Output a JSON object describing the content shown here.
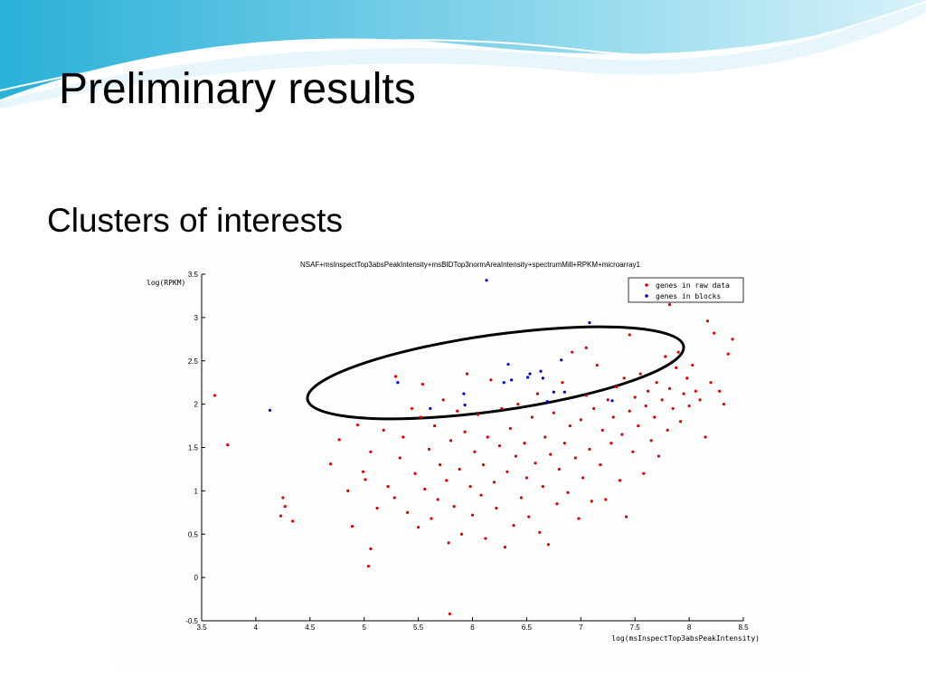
{
  "slide": {
    "title": "Preliminary results",
    "subtitle": "Clusters of interests"
  },
  "chart_data": {
    "type": "scatter",
    "title": "NSAF+msInspectTop3absPeakIntensity+msBIDTop3normAreaIntensity+spectrumMill+RPKM+microarray1",
    "x_label": "log(msInspectTop3absPeakIntensity)",
    "y_label": "log(RPKM)",
    "xlim": [
      3.5,
      8.5
    ],
    "xticks": [
      3.5,
      4,
      4.5,
      5,
      5.5,
      6,
      6.5,
      7,
      7.5,
      8,
      8.5
    ],
    "ylim": [
      -0.5,
      3.5
    ],
    "yticks": [
      -0.5,
      0,
      0.5,
      1,
      1.5,
      2,
      2.5,
      3,
      3.5
    ],
    "grid": false,
    "legend": "upper right",
    "series": [
      {
        "name": "genes in raw data",
        "color": "#e00000",
        "x": [
          3.62,
          3.74,
          4.25,
          4.27,
          4.23,
          4.34,
          4.69,
          4.77,
          4.85,
          4.89,
          4.94,
          4.99,
          5.01,
          5.06,
          5.04,
          5.06,
          5.29,
          5.54,
          5.79,
          5.12,
          5.18,
          5.22,
          5.28,
          5.33,
          5.36,
          5.4,
          5.44,
          5.47,
          5.5,
          5.52,
          5.56,
          5.6,
          5.62,
          5.65,
          5.68,
          5.7,
          5.73,
          5.76,
          5.78,
          5.8,
          5.83,
          5.86,
          5.88,
          5.9,
          5.93,
          5.95,
          5.98,
          6.0,
          6.02,
          6.05,
          6.08,
          6.1,
          6.12,
          6.14,
          6.17,
          6.2,
          6.22,
          6.25,
          6.27,
          6.3,
          6.32,
          6.35,
          6.38,
          6.4,
          6.42,
          6.45,
          6.48,
          6.5,
          6.52,
          6.55,
          6.58,
          6.6,
          6.62,
          6.65,
          6.67,
          6.7,
          6.72,
          6.75,
          6.78,
          6.8,
          6.83,
          6.85,
          6.88,
          6.9,
          6.92,
          6.95,
          6.98,
          7.0,
          7.02,
          7.05,
          7.08,
          7.1,
          7.12,
          7.15,
          7.18,
          7.2,
          7.23,
          7.25,
          7.28,
          7.3,
          7.33,
          7.36,
          7.38,
          7.4,
          7.42,
          7.45,
          7.48,
          7.5,
          7.53,
          7.55,
          7.58,
          7.6,
          7.62,
          7.65,
          7.68,
          7.7,
          7.72,
          7.75,
          7.77,
          7.78,
          7.8,
          7.82,
          7.85,
          7.88,
          7.9,
          7.92,
          7.95,
          7.98,
          8.0,
          8.03,
          8.06,
          8.1,
          8.15,
          8.17,
          8.2,
          8.23,
          8.28,
          8.32,
          8.36,
          8.4,
          7.82,
          7.45,
          7.05
        ],
        "values": [
          2.1,
          1.53,
          0.92,
          0.82,
          0.71,
          0.65,
          1.31,
          1.59,
          1.0,
          0.59,
          1.76,
          1.22,
          1.13,
          0.33,
          0.13,
          1.45,
          2.32,
          2.23,
          -0.42,
          0.8,
          1.7,
          1.05,
          0.92,
          1.38,
          1.62,
          0.75,
          1.95,
          1.2,
          0.58,
          1.85,
          1.02,
          1.48,
          0.68,
          1.75,
          0.9,
          1.3,
          2.05,
          1.12,
          0.4,
          1.58,
          0.82,
          1.92,
          1.25,
          0.5,
          1.68,
          2.35,
          1.05,
          0.72,
          1.45,
          1.88,
          0.95,
          1.3,
          0.45,
          1.62,
          2.28,
          1.1,
          0.8,
          1.52,
          1.95,
          0.35,
          1.22,
          1.72,
          0.6,
          1.4,
          2.0,
          0.92,
          1.55,
          1.15,
          0.7,
          1.85,
          1.32,
          2.12,
          0.52,
          1.05,
          1.62,
          0.38,
          1.42,
          1.9,
          0.85,
          1.25,
          2.25,
          1.55,
          0.98,
          1.75,
          2.6,
          1.38,
          0.68,
          1.82,
          1.15,
          2.1,
          1.48,
          0.88,
          1.95,
          2.45,
          1.3,
          1.7,
          0.9,
          2.05,
          1.55,
          1.85,
          2.2,
          1.12,
          1.65,
          2.3,
          0.7,
          1.92,
          1.45,
          2.08,
          1.75,
          2.35,
          1.2,
          1.98,
          2.15,
          1.58,
          1.85,
          2.25,
          1.4,
          2.05,
          3.36,
          2.55,
          1.7,
          2.18,
          1.95,
          2.42,
          2.6,
          1.8,
          2.12,
          2.3,
          1.98,
          2.45,
          2.15,
          2.05,
          1.62,
          2.96,
          2.25,
          2.82,
          2.15,
          2.0,
          2.58,
          2.75,
          3.15,
          2.8,
          2.65
        ]
      },
      {
        "name": "genes in blocks",
        "color": "#0000d0",
        "x": [
          6.13,
          4.13,
          5.31,
          5.61,
          5.92,
          5.93,
          6.29,
          6.33,
          6.36,
          6.51,
          6.53,
          6.63,
          6.65,
          6.69,
          6.75,
          6.82,
          6.85,
          7.08,
          7.29
        ],
        "values": [
          3.43,
          1.93,
          2.25,
          1.95,
          2.12,
          1.99,
          2.25,
          2.46,
          2.28,
          2.31,
          2.35,
          2.38,
          2.3,
          2.03,
          2.14,
          2.51,
          2.14,
          2.94,
          2.04
        ]
      }
    ]
  }
}
